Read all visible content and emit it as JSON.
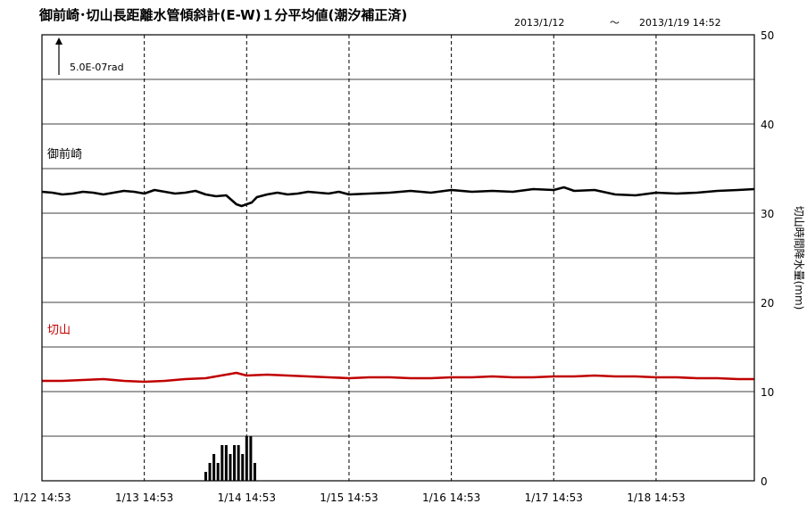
{
  "chart_data": {
    "type": "line",
    "title": "御前崎･切山長距離水管傾斜計(E-W)１分平均値(潮汐補正済)",
    "period_start": "2013/1/12",
    "period_sep": "～",
    "period_end": "2013/1/19 14:52",
    "x_tick_labels": [
      "1/12 14:53",
      "1/13 14:53",
      "1/14 14:53",
      "1/15 14:53",
      "1/16 14:53",
      "1/17 14:53",
      "1/18 14:53"
    ],
    "x_range_days": [
      0,
      6.96
    ],
    "y2_label": "切山時間降水量(mm)",
    "y2_ticks": [
      0,
      10,
      20,
      30,
      40,
      50
    ],
    "y2_range": [
      0,
      50
    ],
    "grid": true,
    "scale_bar_label": "5.0E-07rad",
    "series": [
      {
        "name": "御前崎",
        "color": "#000000",
        "x": [
          0,
          0.1,
          0.2,
          0.3,
          0.4,
          0.5,
          0.6,
          0.7,
          0.8,
          0.9,
          1.0,
          1.1,
          1.2,
          1.3,
          1.4,
          1.5,
          1.6,
          1.7,
          1.8,
          1.85,
          1.9,
          1.95,
          2.0,
          2.05,
          2.1,
          2.2,
          2.3,
          2.4,
          2.5,
          2.6,
          2.7,
          2.8,
          2.9,
          3.0,
          3.2,
          3.4,
          3.6,
          3.8,
          4.0,
          4.2,
          4.4,
          4.6,
          4.8,
          5.0,
          5.1,
          5.2,
          5.4,
          5.6,
          5.8,
          6.0,
          6.2,
          6.4,
          6.6,
          6.8,
          6.96
        ],
        "y": [
          32.4,
          32.3,
          32.1,
          32.2,
          32.4,
          32.3,
          32.1,
          32.3,
          32.5,
          32.4,
          32.2,
          32.6,
          32.4,
          32.2,
          32.3,
          32.5,
          32.1,
          31.9,
          32.0,
          31.5,
          31.0,
          30.8,
          31.0,
          31.2,
          31.8,
          32.1,
          32.3,
          32.1,
          32.2,
          32.4,
          32.3,
          32.2,
          32.4,
          32.1,
          32.2,
          32.3,
          32.5,
          32.3,
          32.6,
          32.4,
          32.5,
          32.4,
          32.7,
          32.6,
          32.9,
          32.5,
          32.6,
          32.1,
          32.0,
          32.3,
          32.2,
          32.3,
          32.5,
          32.6,
          32.7
        ]
      },
      {
        "name": "切山",
        "color": "#c00000",
        "x": [
          0,
          0.2,
          0.4,
          0.6,
          0.8,
          1.0,
          1.2,
          1.4,
          1.6,
          1.8,
          1.9,
          2.0,
          2.2,
          2.4,
          2.6,
          2.8,
          3.0,
          3.2,
          3.4,
          3.6,
          3.8,
          4.0,
          4.2,
          4.4,
          4.6,
          4.8,
          5.0,
          5.2,
          5.4,
          5.6,
          5.8,
          6.0,
          6.2,
          6.4,
          6.6,
          6.8,
          6.96
        ],
        "y": [
          11.2,
          11.2,
          11.3,
          11.4,
          11.2,
          11.1,
          11.2,
          11.4,
          11.5,
          11.9,
          12.1,
          11.8,
          11.9,
          11.8,
          11.7,
          11.6,
          11.5,
          11.6,
          11.6,
          11.5,
          11.5,
          11.6,
          11.6,
          11.7,
          11.6,
          11.6,
          11.7,
          11.7,
          11.8,
          11.7,
          11.7,
          11.6,
          11.6,
          11.5,
          11.5,
          11.4,
          11.4
        ]
      }
    ],
    "precip_bars": {
      "axis": "y2",
      "color": "#000000",
      "x": [
        1.6,
        1.64,
        1.68,
        1.72,
        1.76,
        1.8,
        1.84,
        1.88,
        1.92,
        1.96,
        2.0,
        2.04,
        2.08
      ],
      "values": [
        1,
        2,
        3,
        2,
        4,
        4,
        3,
        4,
        4,
        3,
        5,
        5,
        2
      ]
    }
  }
}
